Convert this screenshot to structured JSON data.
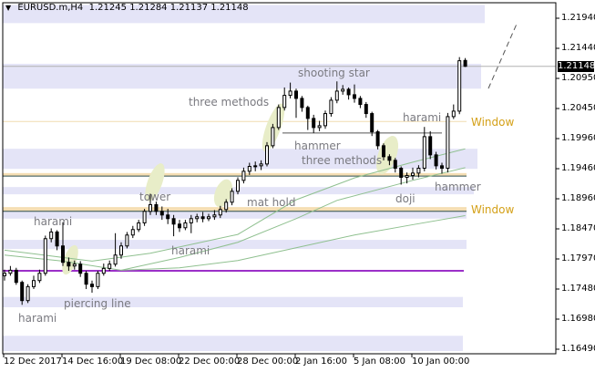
{
  "header": {
    "symbol": "EURUSD.m,H4",
    "open": "1.21245",
    "high": "1.21284",
    "low": "1.21137",
    "close": "1.21148"
  },
  "colors": {
    "band": "#e4e4f7",
    "window_zone": "#f5deb3",
    "purple_line": "#9b30c8",
    "ma": "#8fc08f",
    "window_text": "#d4a017",
    "highlight": "#e8edc8"
  },
  "chart_data": {
    "type": "candlestick",
    "title": "",
    "current_price": "1.21148",
    "y_ticks": [
      "1.21940",
      "1.21440",
      "1.20950",
      "1.20450",
      "1.19960",
      "1.19460",
      "1.18960",
      "1.18470",
      "1.17970",
      "1.17480",
      "1.16980",
      "1.16490"
    ],
    "x_ticks": [
      "12 Dec 2017",
      "14 Dec 16:00",
      "19 Dec 08:00",
      "22 Dec 00:00",
      "28 Dec 00:00",
      "2 Jan 16:00",
      "5 Jan 08:00",
      "10 Jan 00:00"
    ],
    "ylim": [
      1.1649,
      1.2222
    ],
    "candles": [
      [
        1.177,
        1.178,
        1.1762,
        1.1774
      ],
      [
        1.1774,
        1.1786,
        1.177,
        1.1779
      ],
      [
        1.1779,
        1.1783,
        1.1755,
        1.1759
      ],
      [
        1.1759,
        1.1762,
        1.1722,
        1.1729
      ],
      [
        1.1729,
        1.1756,
        1.1725,
        1.1752
      ],
      [
        1.1752,
        1.177,
        1.1748,
        1.1762
      ],
      [
        1.1762,
        1.178,
        1.1758,
        1.1774
      ],
      [
        1.1774,
        1.1836,
        1.177,
        1.1831
      ],
      [
        1.1831,
        1.1848,
        1.1825,
        1.1842
      ],
      [
        1.1842,
        1.1845,
        1.1812,
        1.1819
      ],
      [
        1.1819,
        1.1858,
        1.1786,
        1.1792
      ],
      [
        1.1792,
        1.18,
        1.1778,
        1.1786
      ],
      [
        1.1786,
        1.1795,
        1.178,
        1.1789
      ],
      [
        1.1789,
        1.1794,
        1.1768,
        1.1774
      ],
      [
        1.1774,
        1.1778,
        1.1748,
        1.1756
      ],
      [
        1.1756,
        1.1762,
        1.1742,
        1.1752
      ],
      [
        1.1752,
        1.1778,
        1.1748,
        1.1774
      ],
      [
        1.1774,
        1.179,
        1.177,
        1.1782
      ],
      [
        1.1782,
        1.1795,
        1.1778,
        1.1789
      ],
      [
        1.1789,
        1.184,
        1.1785,
        1.1804
      ],
      [
        1.1804,
        1.1825,
        1.1798,
        1.1819
      ],
      [
        1.1819,
        1.1842,
        1.1815,
        1.1837
      ],
      [
        1.1837,
        1.1852,
        1.1832,
        1.1846
      ],
      [
        1.1846,
        1.1862,
        1.1842,
        1.1857
      ],
      [
        1.1857,
        1.188,
        1.1852,
        1.1876
      ],
      [
        1.1876,
        1.1905,
        1.187,
        1.1887
      ],
      [
        1.1887,
        1.1892,
        1.187,
        1.1876
      ],
      [
        1.1876,
        1.1884,
        1.1862,
        1.187
      ],
      [
        1.187,
        1.188,
        1.1855,
        1.1864
      ],
      [
        1.1864,
        1.187,
        1.1835,
        1.1855
      ],
      [
        1.1855,
        1.1862,
        1.1842,
        1.1849
      ],
      [
        1.1849,
        1.1862,
        1.1845,
        1.1857
      ],
      [
        1.1857,
        1.187,
        1.184,
        1.1864
      ],
      [
        1.1864,
        1.1872,
        1.1858,
        1.1867
      ],
      [
        1.1867,
        1.1875,
        1.1858,
        1.1864
      ],
      [
        1.1864,
        1.1872,
        1.186,
        1.1867
      ],
      [
        1.1867,
        1.1878,
        1.1862,
        1.187
      ],
      [
        1.187,
        1.1885,
        1.1865,
        1.1879
      ],
      [
        1.1879,
        1.1896,
        1.1874,
        1.1891
      ],
      [
        1.1891,
        1.1914,
        1.1886,
        1.1909
      ],
      [
        1.1909,
        1.1932,
        1.1904,
        1.1927
      ],
      [
        1.1927,
        1.1948,
        1.1922,
        1.1942
      ],
      [
        1.1942,
        1.1956,
        1.1936,
        1.195
      ],
      [
        1.195,
        1.1958,
        1.1942,
        1.1951
      ],
      [
        1.1951,
        1.196,
        1.1944,
        1.1954
      ],
      [
        1.1954,
        1.199,
        1.195,
        1.1984
      ],
      [
        1.1984,
        1.202,
        1.198,
        1.2014
      ],
      [
        1.2014,
        1.2052,
        1.201,
        1.2047
      ],
      [
        1.2047,
        1.208,
        1.2042,
        1.2067
      ],
      [
        1.2067,
        1.2088,
        1.2062,
        1.2074
      ],
      [
        1.2074,
        1.2078,
        1.203,
        1.2062
      ],
      [
        1.2062,
        1.2066,
        1.204,
        1.2047
      ],
      [
        1.2047,
        1.205,
        1.201,
        1.2029
      ],
      [
        1.2029,
        1.2035,
        1.2005,
        1.2014
      ],
      [
        1.2014,
        1.2025,
        1.2008,
        1.2017
      ],
      [
        1.2017,
        1.2042,
        1.2012,
        1.2037
      ],
      [
        1.2037,
        1.2064,
        1.2032,
        1.2059
      ],
      [
        1.2059,
        1.209,
        1.2054,
        1.2074
      ],
      [
        1.2074,
        1.2084,
        1.2068,
        1.2077
      ],
      [
        1.2077,
        1.208,
        1.206,
        1.2068
      ],
      [
        1.2068,
        1.2085,
        1.2055,
        1.2062
      ],
      [
        1.2062,
        1.2066,
        1.2046,
        1.2052
      ],
      [
        1.2052,
        1.2056,
        1.203,
        1.2037
      ],
      [
        1.2037,
        1.204,
        1.2,
        1.2007
      ],
      [
        1.2007,
        1.201,
        1.1978,
        1.1984
      ],
      [
        1.1984,
        1.1988,
        1.196,
        1.1966
      ],
      [
        1.1966,
        1.197,
        1.1952,
        1.196
      ],
      [
        1.196,
        1.1964,
        1.194,
        1.1947
      ],
      [
        1.1947,
        1.195,
        1.192,
        1.1932
      ],
      [
        1.1932,
        1.194,
        1.1922,
        1.1935
      ],
      [
        1.1935,
        1.1948,
        1.1928,
        1.1939
      ],
      [
        1.1939,
        1.1952,
        1.1932,
        1.1947
      ],
      [
        1.1947,
        1.2015,
        1.1942,
        1.1999
      ],
      [
        1.1999,
        1.2008,
        1.1962,
        1.1969
      ],
      [
        1.1969,
        1.1974,
        1.1945,
        1.1951
      ],
      [
        1.1951,
        1.1956,
        1.1938,
        1.1947
      ],
      [
        1.1947,
        1.2038,
        1.194,
        1.2032
      ],
      [
        1.2032,
        1.2052,
        1.2028,
        1.2041
      ],
      [
        1.2041,
        1.213,
        1.2036,
        1.2124
      ],
      [
        1.21245,
        1.21284,
        1.21137,
        1.21148
      ]
    ],
    "moving_averages": [
      {
        "points": [
          [
            0,
            1.1812
          ],
          [
            10,
            1.18
          ],
          [
            15,
            1.1794
          ],
          [
            25,
            1.1807
          ],
          [
            40,
            1.1838
          ],
          [
            50,
            1.1895
          ],
          [
            60,
            1.1931
          ],
          [
            70,
            1.1957
          ],
          [
            79,
            1.1979
          ]
        ]
      },
      {
        "points": [
          [
            0,
            1.1804
          ],
          [
            10,
            1.1794
          ],
          [
            20,
            1.1779
          ],
          [
            30,
            1.18
          ],
          [
            40,
            1.1825
          ],
          [
            50,
            1.1864
          ],
          [
            57,
            1.1894
          ],
          [
            70,
            1.1927
          ],
          [
            79,
            1.1948
          ]
        ]
      },
      {
        "points": [
          [
            20,
            1.1779
          ],
          [
            30,
            1.1783
          ],
          [
            40,
            1.1795
          ],
          [
            50,
            1.1816
          ],
          [
            60,
            1.1837
          ],
          [
            70,
            1.1854
          ],
          [
            79,
            1.1869
          ]
        ]
      }
    ],
    "zones": [
      [
        1.2186,
        1.2216
      ],
      [
        1.2078,
        1.2119
      ],
      [
        1.1946,
        1.1979
      ],
      [
        1.1904,
        1.1916
      ],
      [
        1.1864,
        1.1876
      ],
      [
        1.1814,
        1.1829
      ],
      [
        1.1718,
        1.1735
      ],
      [
        1.1646,
        1.1671
      ]
    ],
    "window_zones": [
      [
        1.1934,
        1.1939
      ],
      [
        1.1876,
        1.1883
      ]
    ],
    "levels": {
      "window_line": 1.2024,
      "resistance_1": 1.1934,
      "resistance_2": 1.1876,
      "purple": 1.1778,
      "hammer_line": 1.2005
    },
    "annotations": [
      {
        "text": "three methods"
      },
      {
        "text": "shooting star"
      },
      {
        "text": "harami"
      },
      {
        "text": "Window"
      },
      {
        "text": "hammer"
      },
      {
        "text": "three methods"
      },
      {
        "text": "hammer"
      },
      {
        "text": "doji"
      },
      {
        "text": "mat hold"
      },
      {
        "text": "tower"
      },
      {
        "text": "harami"
      },
      {
        "text": "Window"
      },
      {
        "text": "harami"
      },
      {
        "text": "piercing line"
      },
      {
        "text": "harami"
      }
    ]
  }
}
